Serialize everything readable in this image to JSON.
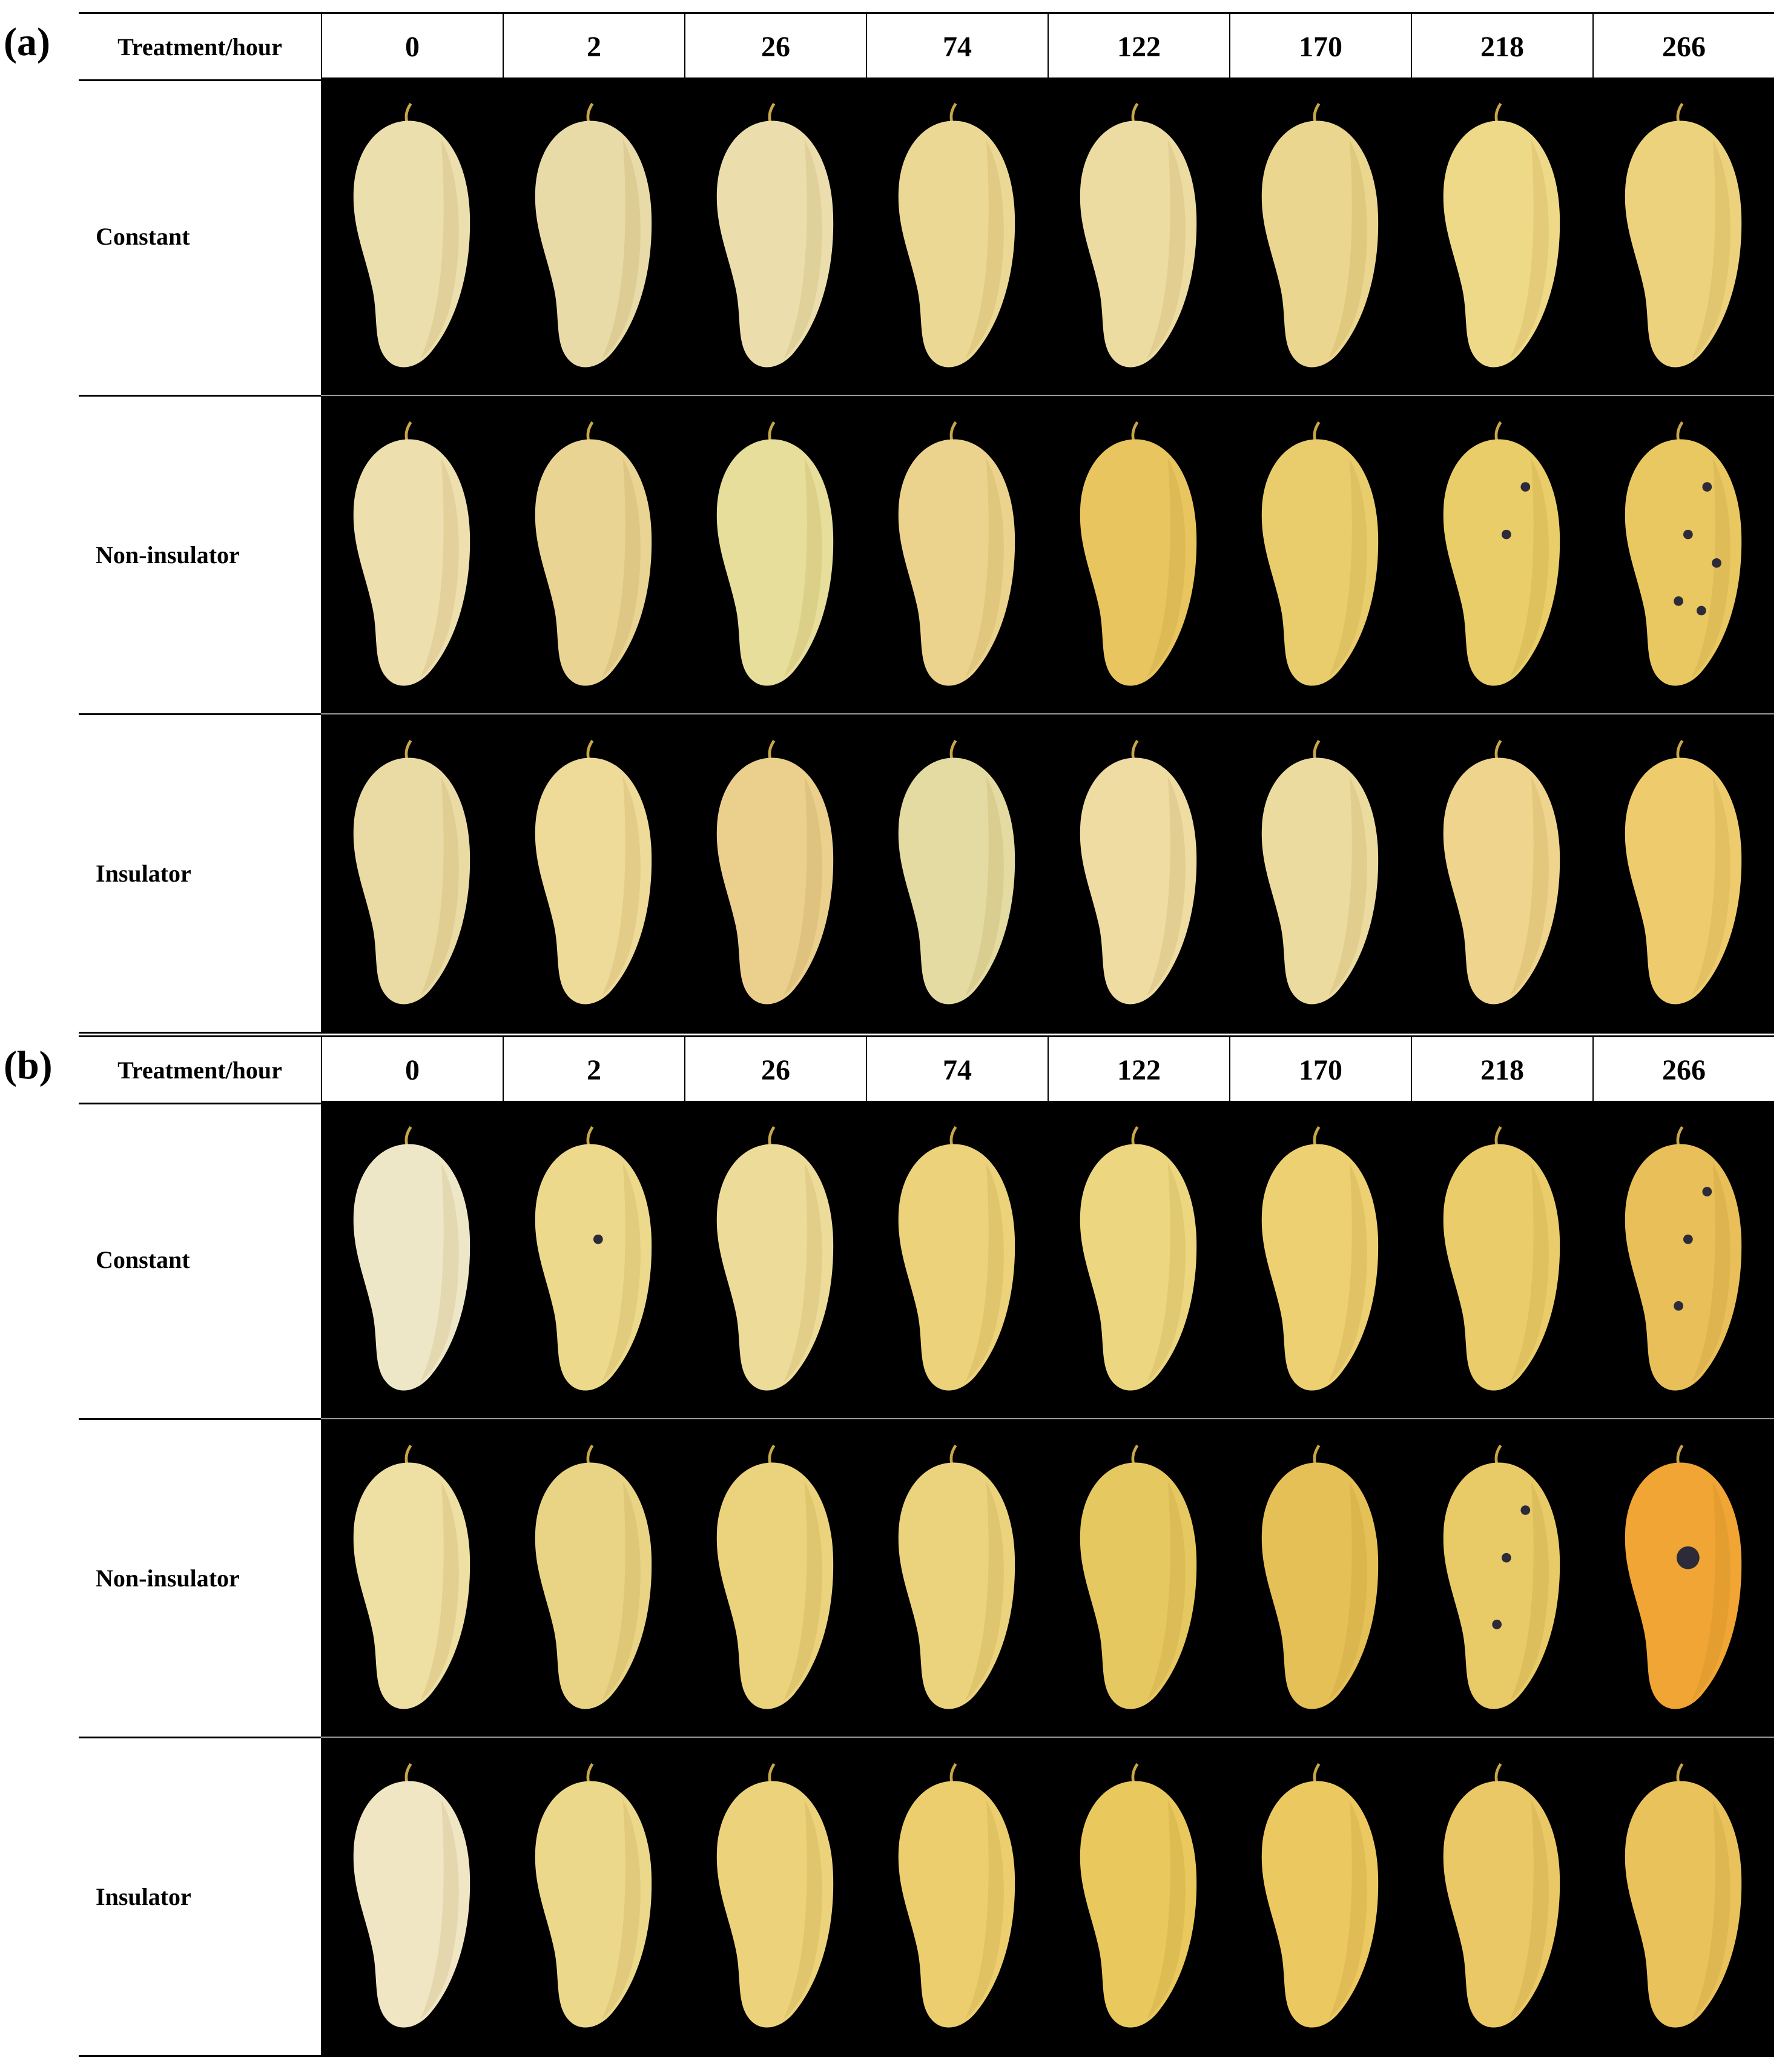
{
  "header_label": "Treatment/hour",
  "hours": [
    "0",
    "2",
    "26",
    "74",
    "122",
    "170",
    "218",
    "266"
  ],
  "panels": [
    {
      "label": "(a)",
      "rows": [
        {
          "treatment": "Constant",
          "colors": [
            "#ecdfae",
            "#e8dba8",
            "#ebdeac",
            "#ecd895",
            "#ecdca2",
            "#ead68e",
            "#eed989",
            "#ecd27d"
          ],
          "spots": [
            0,
            0,
            0,
            0,
            0,
            0,
            0,
            0
          ]
        },
        {
          "treatment": "Non-insulator",
          "colors": [
            "#eedfae",
            "#e9d494",
            "#e6de9a",
            "#ecd38d",
            "#e8c55f",
            "#e9cd6c",
            "#e9cd68",
            "#e9c862"
          ],
          "spots": [
            0,
            0,
            0,
            0,
            0,
            0,
            2,
            5
          ]
        },
        {
          "treatment": "Insulator",
          "colors": [
            "#eadba4",
            "#eeda99",
            "#eacf8d",
            "#e4dba2",
            "#eedca3",
            "#ecdb9f",
            "#eed48c",
            "#eecc6e"
          ],
          "spots": [
            0,
            0,
            0,
            0,
            0,
            0,
            0,
            0
          ]
        }
      ]
    },
    {
      "label": "(b)",
      "rows": [
        {
          "treatment": "Constant",
          "colors": [
            "#eee7c7",
            "#ecd98c",
            "#eddc99",
            "#ecd27a",
            "#ecd680",
            "#ecd072",
            "#eacd6a",
            "#e8bf58"
          ],
          "spots": [
            0,
            1,
            0,
            0,
            0,
            0,
            0,
            3
          ]
        },
        {
          "treatment": "Non-insulator",
          "colors": [
            "#eedfa2",
            "#e9d486",
            "#ebd27d",
            "#ebd27d",
            "#e6c861",
            "#e5c056",
            "#e8ca67",
            "#f0a534"
          ],
          "spots": [
            0,
            0,
            0,
            0,
            0,
            0,
            3,
            1
          ]
        },
        {
          "treatment": "Insulator",
          "colors": [
            "#f0e6c4",
            "#ecd88a",
            "#ecd27a",
            "#ecce6e",
            "#e9c85e",
            "#ecc860",
            "#eac866",
            "#eac25c"
          ],
          "spots": [
            0,
            0,
            0,
            0,
            0,
            0,
            0,
            0
          ]
        }
      ]
    }
  ]
}
